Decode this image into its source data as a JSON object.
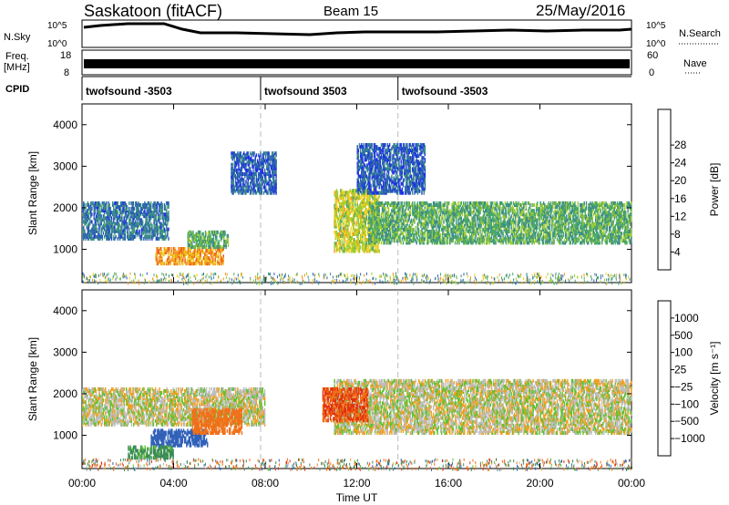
{
  "header": {
    "title": "Saskatoon (fitACF)",
    "beam": "Beam 15",
    "date": "25/May/2016"
  },
  "noise_panel": {
    "left_label": "N.Sky",
    "right_label": "N.Search",
    "left_ticks": [
      "10^5",
      "10^0"
    ],
    "right_ticks": [
      "10^5",
      "10^0"
    ]
  },
  "freq_panel": {
    "left_label_1": "Freq.",
    "left_label_2": "[MHz]",
    "right_label": "Nave",
    "left_ticks": [
      "18",
      "8"
    ],
    "right_ticks": [
      "60",
      "0"
    ]
  },
  "cpid_panel": {
    "label": "CPID",
    "segments": [
      {
        "start": 0,
        "end": 7.8,
        "name": "twofsound -3503"
      },
      {
        "start": 7.8,
        "end": 13.8,
        "name": "twofsound 3503"
      },
      {
        "start": 13.8,
        "end": 24,
        "name": "twofsound -3503"
      }
    ]
  },
  "colors": {
    "power_scale": [
      "#1f2fe8",
      "#2a5fb3",
      "#3a8a8a",
      "#4aa86a",
      "#9ccc30",
      "#f0d020",
      "#f09a20",
      "#f06018",
      "#e82818"
    ],
    "velocity_scale": [
      "#2030d0",
      "#3060b8",
      "#3a8a5a",
      "#60c030",
      "#c8c8c8",
      "#c8c8c8",
      "#f0a020",
      "#f07018",
      "#e03010"
    ],
    "ground_scatter": "#bdbdbd"
  },
  "chart_data": [
    {
      "type": "heatmap",
      "title": "",
      "xlabel": "",
      "ylabel": "Slant Range [km]",
      "xlim": [
        0,
        24
      ],
      "ylim": [
        200,
        4500
      ],
      "yticks": [
        1000,
        2000,
        3000,
        4000
      ],
      "ytick_labels": [
        "1000",
        "2000",
        "3000",
        "4000"
      ],
      "colorbar": {
        "label": "Power [dB]",
        "ticks": [
          "4",
          "8",
          "12",
          "16",
          "20",
          "24",
          "28"
        ]
      },
      "echo_regions": [
        {
          "t0": 0.0,
          "t1": 3.8,
          "r0": 1300,
          "r1": 2200,
          "power_db": 8
        },
        {
          "t0": 3.2,
          "t1": 6.2,
          "r0": 700,
          "r1": 1100,
          "power_db": 26
        },
        {
          "t0": 4.6,
          "t1": 6.4,
          "r0": 1100,
          "r1": 1500,
          "power_db": 14
        },
        {
          "t0": 6.5,
          "t1": 8.5,
          "r0": 2400,
          "r1": 3400,
          "power_db": 6
        },
        {
          "t0": 11.0,
          "t1": 13.0,
          "r0": 1000,
          "r1": 2500,
          "power_db": 20
        },
        {
          "t0": 12.5,
          "t1": 24.0,
          "r0": 1200,
          "r1": 2200,
          "power_db": 14
        },
        {
          "t0": 12.0,
          "t1": 15.0,
          "r0": 2400,
          "r1": 3600,
          "power_db": 6
        }
      ]
    },
    {
      "type": "heatmap",
      "title": "",
      "xlabel": "Time UT",
      "ylabel": "Slant Range [km]",
      "xlim": [
        0,
        24
      ],
      "ylim": [
        200,
        4500
      ],
      "xticks": [
        0,
        4,
        8,
        12,
        16,
        20,
        24
      ],
      "xtick_labels": [
        "00:00",
        "04:00",
        "08:00",
        "12:00",
        "16:00",
        "20:00",
        "00:00"
      ],
      "yticks": [
        1000,
        2000,
        3000,
        4000
      ],
      "ytick_labels": [
        "1000",
        "2000",
        "3000",
        "4000"
      ],
      "colorbar": {
        "label": "Velocity [m s⁻¹]",
        "ticks": [
          "1000",
          "500",
          "100",
          "25",
          "−25",
          "−100",
          "−500",
          "−1000"
        ]
      },
      "echo_regions": [
        {
          "t0": 0.0,
          "t1": 8.0,
          "r0": 1300,
          "r1": 2200,
          "velocity": 0
        },
        {
          "t0": 3.0,
          "t1": 5.5,
          "r0": 800,
          "r1": 1200,
          "velocity": 500
        },
        {
          "t0": 4.8,
          "t1": 7.0,
          "r0": 1100,
          "r1": 1700,
          "velocity": -200
        },
        {
          "t0": 2.0,
          "t1": 4.0,
          "r0": 500,
          "r1": 800,
          "velocity": 100
        },
        {
          "t0": 11.0,
          "t1": 24.0,
          "r0": 1100,
          "r1": 2400,
          "velocity": 0
        },
        {
          "t0": 10.5,
          "t1": 12.5,
          "r0": 1400,
          "r1": 2200,
          "velocity": -300
        }
      ]
    }
  ]
}
